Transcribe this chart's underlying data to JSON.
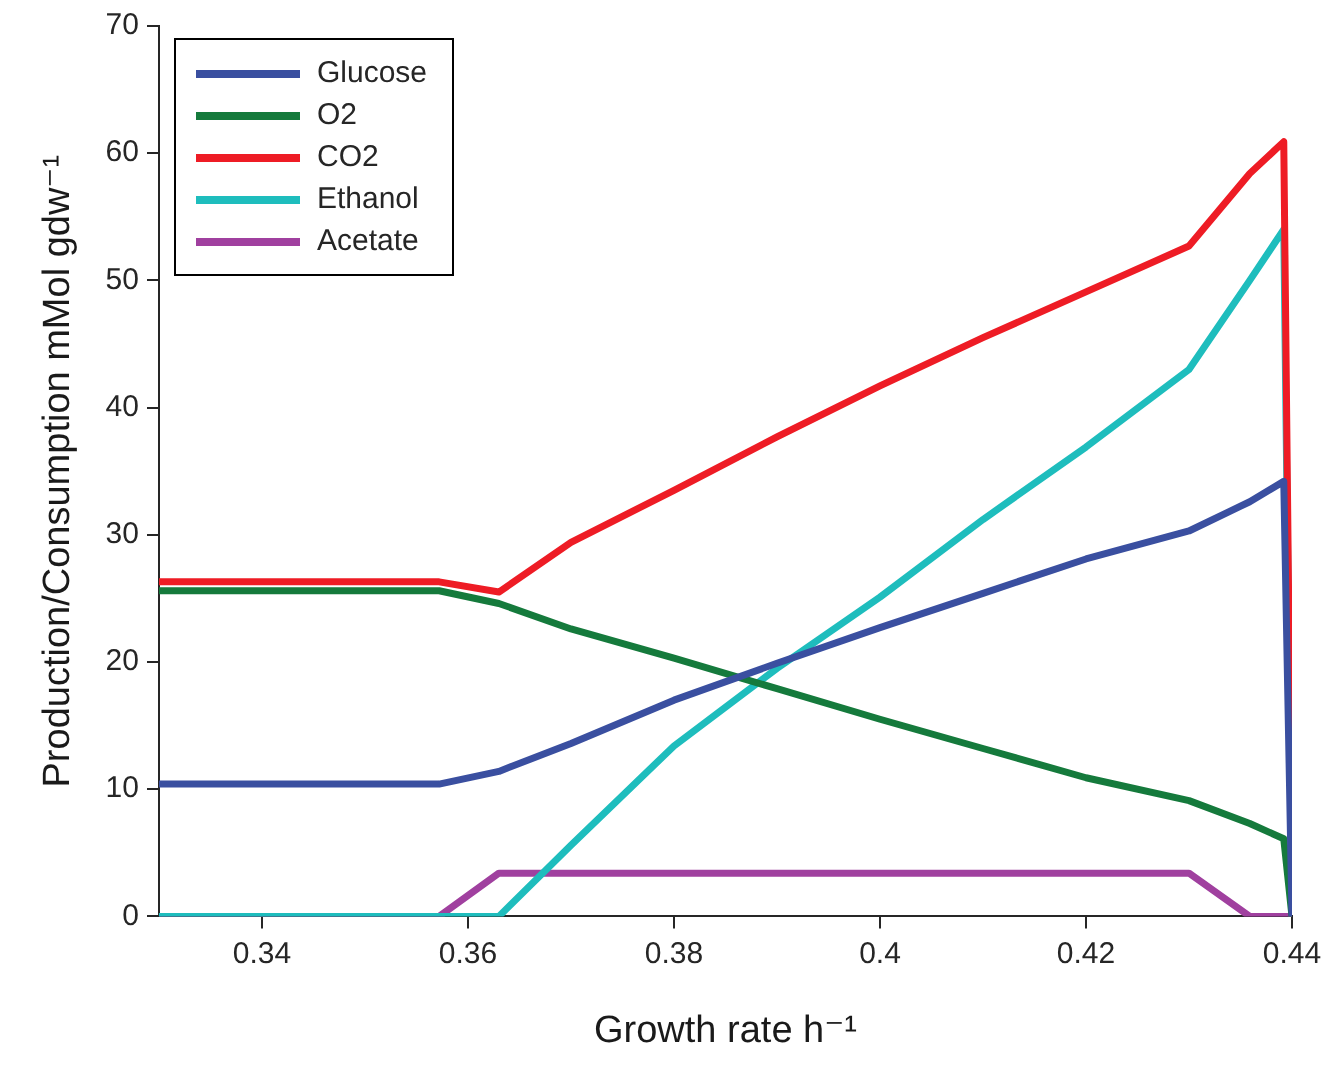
{
  "chart_data": {
    "type": "line",
    "xlabel": "Growth rate h⁻¹",
    "ylabel": "Production/Consumption mMol gdw⁻¹",
    "x": [
      0.33,
      0.3572,
      0.363,
      0.37,
      0.38,
      0.39,
      0.4,
      0.41,
      0.42,
      0.43,
      0.4359,
      0.4392,
      0.44
    ],
    "series": [
      {
        "name": "Glucose",
        "color": "#3a4fa0",
        "values": [
          10.4,
          10.4,
          11.4,
          13.6,
          17,
          19.9,
          22.7,
          25.4,
          28.1,
          30.3,
          32.6,
          34.2,
          0
        ]
      },
      {
        "name": "O2",
        "color": "#157a3c",
        "values": [
          25.6,
          25.6,
          24.6,
          22.6,
          20.3,
          17.9,
          15.5,
          13.2,
          10.9,
          9.1,
          7.3,
          6.1,
          0
        ]
      },
      {
        "name": "CO2",
        "color": "#ee1c25",
        "values": [
          26.3,
          26.3,
          25.5,
          29.4,
          33.5,
          37.7,
          41.7,
          45.5,
          49.1,
          52.7,
          58.4,
          60.9,
          0
        ]
      },
      {
        "name": "Ethanol",
        "color": "#1ebdbd",
        "values": [
          0,
          0,
          0,
          5.6,
          13.4,
          19.5,
          25.1,
          31.2,
          36.9,
          43,
          50,
          54,
          0
        ]
      },
      {
        "name": "Acetate",
        "color": "#a0409f",
        "values": [
          0,
          0,
          3.4,
          3.4,
          3.4,
          3.4,
          3.4,
          3.4,
          3.4,
          3.4,
          0,
          0,
          0
        ]
      }
    ],
    "xlim": [
      0.33,
      0.44
    ],
    "xticks": [
      0.34,
      0.36,
      0.38,
      {
        "value": 0.4,
        "label": "0.4"
      },
      0.42,
      0.44
    ],
    "ylim": [
      0,
      70
    ],
    "yticks": [
      0,
      10,
      20,
      30,
      40,
      50,
      60,
      70
    ],
    "legend": "top left",
    "marker": "none",
    "line_style": "solid"
  }
}
